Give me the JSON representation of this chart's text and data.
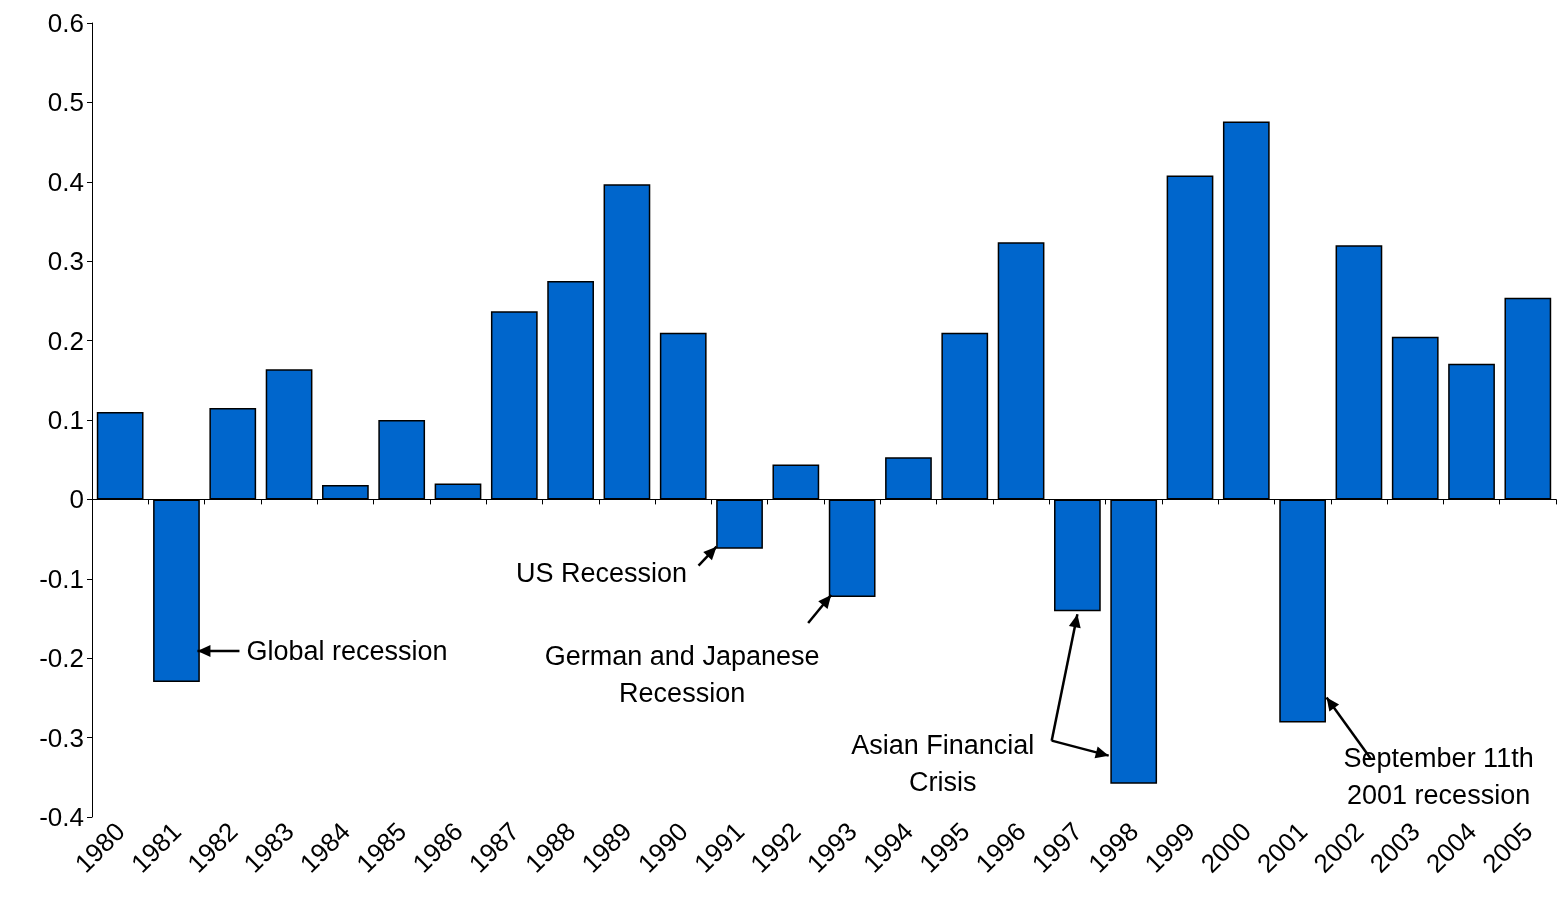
{
  "chart_data": {
    "type": "bar",
    "categories": [
      "1980",
      "1981",
      "1982",
      "1983",
      "1984",
      "1985",
      "1986",
      "1987",
      "1988",
      "1989",
      "1990",
      "1991",
      "1992",
      "1993",
      "1994",
      "1995",
      "1996",
      "1997",
      "1998",
      "1999",
      "2000",
      "2001",
      "2002",
      "2003",
      "2004",
      "2005"
    ],
    "values": [
      0.11,
      -0.23,
      0.115,
      0.164,
      0.018,
      0.1,
      0.02,
      0.237,
      0.275,
      0.397,
      0.21,
      -0.062,
      0.044,
      -0.123,
      0.053,
      0.21,
      0.324,
      -0.141,
      -0.358,
      0.408,
      0.476,
      -0.281,
      0.32,
      0.205,
      0.171,
      0.254
    ],
    "color": "#0066cc",
    "ylim": [
      -0.4,
      0.6
    ],
    "yticks": [
      -0.4,
      -0.3,
      -0.2,
      -0.1,
      0,
      0.1,
      0.2,
      0.3,
      0.4,
      0.5,
      0.6
    ],
    "annotations": [
      "Global recession",
      {
        "text": "US Recession",
        "x": "1991",
        "y": -0.062
      },
      {
        "text": "German and Japanese\nRecession",
        "x": "1993",
        "y": -0.123
      },
      {
        "text": "Asian Financial\nCrisis",
        "x": "1998",
        "y": -0.358
      },
      {
        "text": "September 11th\n2001 recession",
        "x": "2001",
        "y": -0.281
      }
    ]
  }
}
